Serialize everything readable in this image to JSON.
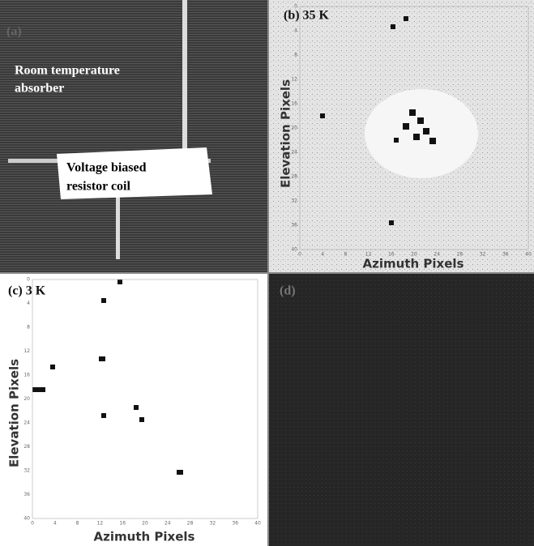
{
  "panels": [
    {
      "label": "(a)",
      "texts": [
        "Room temperature",
        "absorber",
        "Voltage biased",
        "resistor coil"
      ]
    },
    {
      "label": "(b) 35 K",
      "y_title": "Elevation Pixels",
      "x_title": "Azimuth Pixels",
      "x_ticks": [
        0,
        4,
        8,
        12,
        16,
        20,
        24,
        28,
        32,
        36,
        40
      ],
      "y_ticks": [
        0,
        4,
        8,
        12,
        16,
        20,
        24,
        28,
        32,
        36,
        40
      ]
    },
    {
      "label": "(c) 3 K",
      "y_title": "Elevation Pixels",
      "x_title": "Azimuth Pixels",
      "x_ticks": [
        0,
        4,
        8,
        12,
        16,
        20,
        24,
        28,
        32,
        36,
        40
      ],
      "y_ticks": [
        0,
        4,
        8,
        12,
        16,
        20,
        24,
        28,
        32,
        36,
        40
      ]
    },
    {
      "label": "(d)"
    }
  ]
}
